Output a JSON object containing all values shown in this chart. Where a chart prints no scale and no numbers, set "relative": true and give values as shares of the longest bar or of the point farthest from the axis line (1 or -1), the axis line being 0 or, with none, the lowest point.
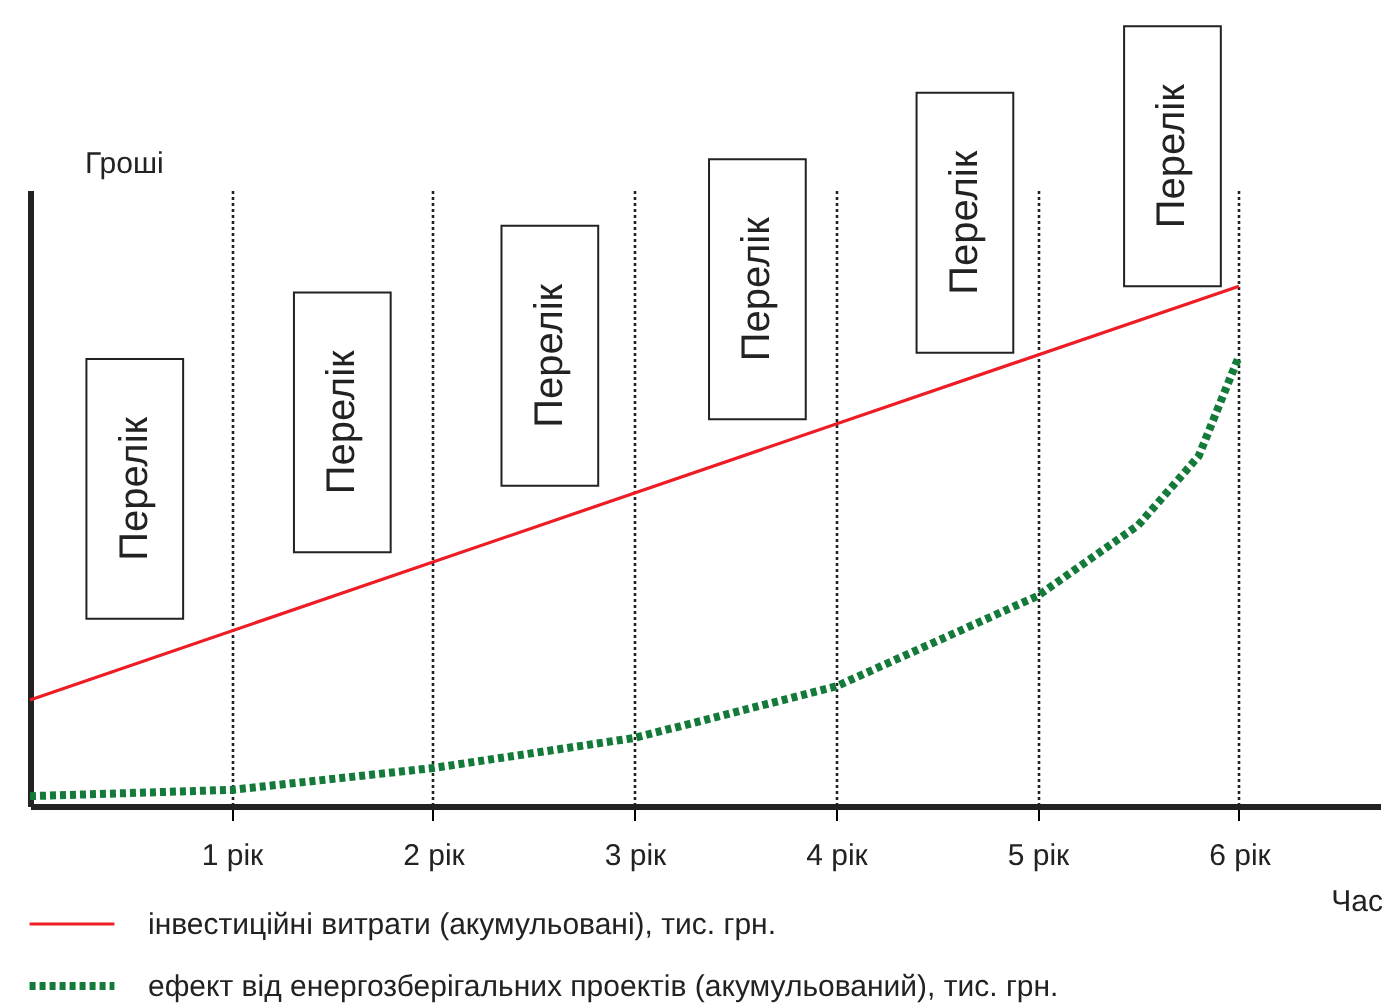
{
  "chart_data": {
    "type": "line",
    "relative": true,
    "xlabel": "Час",
    "ylabel": "Гроші",
    "xlim": [
      0,
      6.7
    ],
    "xticks": [
      {
        "value": 1,
        "label": "1 рік"
      },
      {
        "value": 2,
        "label": "2 рік"
      },
      {
        "value": 3,
        "label": "3 рік"
      },
      {
        "value": 4,
        "label": "4 рік"
      },
      {
        "value": 5,
        "label": "5 рік"
      },
      {
        "value": 6,
        "label": "6 рік"
      }
    ],
    "grid": "x",
    "legend": "bottom",
    "annotations": [
      "Перелік",
      "Перелік",
      "Перелік",
      "Перелік",
      "Перелік",
      "Перелік"
    ],
    "series": [
      {
        "name": "інвестиційні витрати (акумульовані), тис. грн.",
        "color": "#ee1c24",
        "line_style": "solid",
        "x": [
          0,
          6
        ],
        "values": [
          0.204,
          1
        ]
      },
      {
        "name": "ефект від енергозберігальних проектів (акумульований), тис. грн.",
        "color": "#137a3a",
        "line_style": "dotted",
        "x": [
          0,
          1,
          2,
          3,
          4,
          5,
          5.5,
          5.8,
          6
        ],
        "values": [
          0.019,
          0.031,
          0.073,
          0.131,
          0.23,
          0.404,
          0.54,
          0.673,
          0.865
        ]
      }
    ]
  }
}
